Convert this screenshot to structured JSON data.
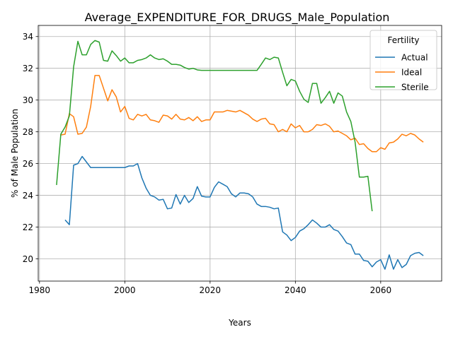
{
  "chart_data": {
    "type": "line",
    "title": "Average_EXPENDITURE_FOR_DRUGS_Male_Population",
    "xlabel": "Years",
    "ylabel": "% of Male Population",
    "xlim": [
      1979.7,
      2074.3
    ],
    "ylim": [
      18.6,
      34.7
    ],
    "xticks": [
      1980,
      2000,
      2020,
      2040,
      2060
    ],
    "yticks": [
      20,
      22,
      24,
      26,
      28,
      30,
      32,
      34
    ],
    "grid": true,
    "legend": {
      "title": "Fertility",
      "placement": "top-right"
    },
    "series": [
      {
        "name": "Actual",
        "color": "#1f77b4",
        "points": [
          [
            1986,
            22.45
          ],
          [
            1987,
            22.15
          ],
          [
            1988,
            25.9
          ],
          [
            1989,
            26.0
          ],
          [
            1990,
            26.45
          ],
          [
            1991,
            26.1
          ],
          [
            1992,
            25.75
          ],
          [
            1993,
            25.75
          ],
          [
            1994,
            25.75
          ],
          [
            1995,
            25.75
          ],
          [
            1996,
            25.75
          ],
          [
            1997,
            25.75
          ],
          [
            1998,
            25.75
          ],
          [
            1999,
            25.75
          ],
          [
            2000,
            25.75
          ],
          [
            2001,
            25.85
          ],
          [
            2002,
            25.85
          ],
          [
            2003,
            26.0
          ],
          [
            2004,
            25.1
          ],
          [
            2005,
            24.45
          ],
          [
            2006,
            24.0
          ],
          [
            2007,
            23.9
          ],
          [
            2008,
            23.7
          ],
          [
            2009,
            23.75
          ],
          [
            2010,
            23.15
          ],
          [
            2011,
            23.2
          ],
          [
            2012,
            24.05
          ],
          [
            2013,
            23.45
          ],
          [
            2014,
            24.0
          ],
          [
            2015,
            23.55
          ],
          [
            2016,
            23.8
          ],
          [
            2017,
            24.55
          ],
          [
            2018,
            23.95
          ],
          [
            2019,
            23.9
          ],
          [
            2020,
            23.9
          ],
          [
            2021,
            24.5
          ],
          [
            2022,
            24.85
          ],
          [
            2023,
            24.7
          ],
          [
            2024,
            24.55
          ],
          [
            2025,
            24.1
          ],
          [
            2026,
            23.9
          ],
          [
            2027,
            24.15
          ],
          [
            2028,
            24.15
          ],
          [
            2029,
            24.1
          ],
          [
            2030,
            23.9
          ],
          [
            2031,
            23.45
          ],
          [
            2032,
            23.3
          ],
          [
            2033,
            23.3
          ],
          [
            2034,
            23.25
          ],
          [
            2035,
            23.15
          ],
          [
            2036,
            23.2
          ],
          [
            2037,
            21.7
          ],
          [
            2038,
            21.5
          ],
          [
            2039,
            21.15
          ],
          [
            2040,
            21.35
          ],
          [
            2041,
            21.75
          ],
          [
            2042,
            21.9
          ],
          [
            2043,
            22.15
          ],
          [
            2044,
            22.45
          ],
          [
            2045,
            22.25
          ],
          [
            2046,
            22.0
          ],
          [
            2047,
            22.0
          ],
          [
            2048,
            22.15
          ],
          [
            2049,
            21.85
          ],
          [
            2050,
            21.75
          ],
          [
            2051,
            21.4
          ],
          [
            2052,
            21.0
          ],
          [
            2053,
            20.9
          ],
          [
            2054,
            20.3
          ],
          [
            2055,
            20.3
          ],
          [
            2056,
            19.9
          ],
          [
            2057,
            19.85
          ],
          [
            2058,
            19.5
          ],
          [
            2059,
            19.8
          ],
          [
            2060,
            19.95
          ],
          [
            2061,
            19.35
          ],
          [
            2062,
            20.25
          ],
          [
            2063,
            19.35
          ],
          [
            2064,
            19.95
          ],
          [
            2065,
            19.45
          ],
          [
            2066,
            19.65
          ],
          [
            2067,
            20.2
          ],
          [
            2068,
            20.35
          ],
          [
            2069,
            20.4
          ],
          [
            2070,
            20.2
          ]
        ]
      },
      {
        "name": "Ideal",
        "color": "#ff7f0e",
        "points": [
          [
            1985,
            27.8
          ],
          [
            1986,
            27.85
          ],
          [
            1987,
            29.15
          ],
          [
            1988,
            28.95
          ],
          [
            1989,
            27.85
          ],
          [
            1990,
            27.9
          ],
          [
            1991,
            28.3
          ],
          [
            1992,
            29.6
          ],
          [
            1993,
            31.55
          ],
          [
            1994,
            31.55
          ],
          [
            1995,
            30.75
          ],
          [
            1996,
            29.95
          ],
          [
            1997,
            30.65
          ],
          [
            1998,
            30.2
          ],
          [
            1999,
            29.25
          ],
          [
            2000,
            29.6
          ],
          [
            2001,
            28.85
          ],
          [
            2002,
            28.75
          ],
          [
            2003,
            29.1
          ],
          [
            2004,
            29.0
          ],
          [
            2005,
            29.1
          ],
          [
            2006,
            28.75
          ],
          [
            2007,
            28.7
          ],
          [
            2008,
            28.6
          ],
          [
            2009,
            29.05
          ],
          [
            2010,
            29.0
          ],
          [
            2011,
            28.8
          ],
          [
            2012,
            29.1
          ],
          [
            2013,
            28.8
          ],
          [
            2014,
            28.75
          ],
          [
            2015,
            28.9
          ],
          [
            2016,
            28.7
          ],
          [
            2017,
            28.95
          ],
          [
            2018,
            28.65
          ],
          [
            2019,
            28.75
          ],
          [
            2020,
            28.75
          ],
          [
            2021,
            29.25
          ],
          [
            2022,
            29.25
          ],
          [
            2023,
            29.25
          ],
          [
            2024,
            29.35
          ],
          [
            2025,
            29.3
          ],
          [
            2026,
            29.25
          ],
          [
            2027,
            29.35
          ],
          [
            2028,
            29.2
          ],
          [
            2029,
            29.05
          ],
          [
            2030,
            28.8
          ],
          [
            2031,
            28.65
          ],
          [
            2032,
            28.8
          ],
          [
            2033,
            28.85
          ],
          [
            2034,
            28.5
          ],
          [
            2035,
            28.45
          ],
          [
            2036,
            28.0
          ],
          [
            2037,
            28.15
          ],
          [
            2038,
            28.0
          ],
          [
            2039,
            28.5
          ],
          [
            2040,
            28.25
          ],
          [
            2041,
            28.4
          ],
          [
            2042,
            28.0
          ],
          [
            2043,
            28.0
          ],
          [
            2044,
            28.15
          ],
          [
            2045,
            28.45
          ],
          [
            2046,
            28.4
          ],
          [
            2047,
            28.5
          ],
          [
            2048,
            28.35
          ],
          [
            2049,
            28.0
          ],
          [
            2050,
            28.05
          ],
          [
            2051,
            27.9
          ],
          [
            2052,
            27.75
          ],
          [
            2053,
            27.5
          ],
          [
            2054,
            27.6
          ],
          [
            2055,
            27.2
          ],
          [
            2056,
            27.25
          ],
          [
            2057,
            26.95
          ],
          [
            2058,
            26.75
          ],
          [
            2059,
            26.75
          ],
          [
            2060,
            27.0
          ],
          [
            2061,
            26.9
          ],
          [
            2062,
            27.3
          ],
          [
            2063,
            27.35
          ],
          [
            2064,
            27.55
          ],
          [
            2065,
            27.85
          ],
          [
            2066,
            27.75
          ],
          [
            2067,
            27.9
          ],
          [
            2068,
            27.8
          ],
          [
            2069,
            27.55
          ],
          [
            2070,
            27.35
          ]
        ]
      },
      {
        "name": "Sterile",
        "color": "#2ca02c",
        "points": [
          [
            1984,
            24.65
          ],
          [
            1985,
            27.85
          ],
          [
            1986,
            28.3
          ],
          [
            1987,
            29.0
          ],
          [
            1988,
            32.1
          ],
          [
            1989,
            33.7
          ],
          [
            1990,
            32.85
          ],
          [
            1991,
            32.85
          ],
          [
            1992,
            33.5
          ],
          [
            1993,
            33.75
          ],
          [
            1994,
            33.65
          ],
          [
            1995,
            32.5
          ],
          [
            1996,
            32.45
          ],
          [
            1997,
            33.1
          ],
          [
            1998,
            32.8
          ],
          [
            1999,
            32.45
          ],
          [
            2000,
            32.65
          ],
          [
            2001,
            32.35
          ],
          [
            2002,
            32.35
          ],
          [
            2003,
            32.5
          ],
          [
            2004,
            32.55
          ],
          [
            2005,
            32.65
          ],
          [
            2006,
            32.85
          ],
          [
            2007,
            32.65
          ],
          [
            2008,
            32.55
          ],
          [
            2009,
            32.6
          ],
          [
            2010,
            32.45
          ],
          [
            2011,
            32.25
          ],
          [
            2012,
            32.25
          ],
          [
            2013,
            32.2
          ],
          [
            2014,
            32.05
          ],
          [
            2015,
            31.95
          ],
          [
            2016,
            32.0
          ],
          [
            2017,
            31.9
          ],
          [
            2018,
            31.87
          ],
          [
            2019,
            31.87
          ],
          [
            2020,
            31.87
          ],
          [
            2021,
            31.87
          ],
          [
            2022,
            31.87
          ],
          [
            2023,
            31.87
          ],
          [
            2024,
            31.87
          ],
          [
            2025,
            31.87
          ],
          [
            2026,
            31.87
          ],
          [
            2027,
            31.87
          ],
          [
            2028,
            31.87
          ],
          [
            2029,
            31.87
          ],
          [
            2030,
            31.87
          ],
          [
            2031,
            31.87
          ],
          [
            2032,
            32.25
          ],
          [
            2033,
            32.65
          ],
          [
            2034,
            32.55
          ],
          [
            2035,
            32.7
          ],
          [
            2036,
            32.65
          ],
          [
            2037,
            31.75
          ],
          [
            2038,
            30.9
          ],
          [
            2039,
            31.3
          ],
          [
            2040,
            31.2
          ],
          [
            2041,
            30.55
          ],
          [
            2042,
            30.05
          ],
          [
            2043,
            29.85
          ],
          [
            2044,
            31.05
          ],
          [
            2045,
            31.05
          ],
          [
            2046,
            29.8
          ],
          [
            2047,
            30.15
          ],
          [
            2048,
            30.55
          ],
          [
            2049,
            29.8
          ],
          [
            2050,
            30.45
          ],
          [
            2051,
            30.25
          ],
          [
            2052,
            29.25
          ],
          [
            2053,
            28.65
          ],
          [
            2054,
            27.35
          ],
          [
            2055,
            25.15
          ],
          [
            2056,
            25.15
          ],
          [
            2057,
            25.2
          ],
          [
            2058,
            23.0
          ]
        ]
      }
    ]
  }
}
